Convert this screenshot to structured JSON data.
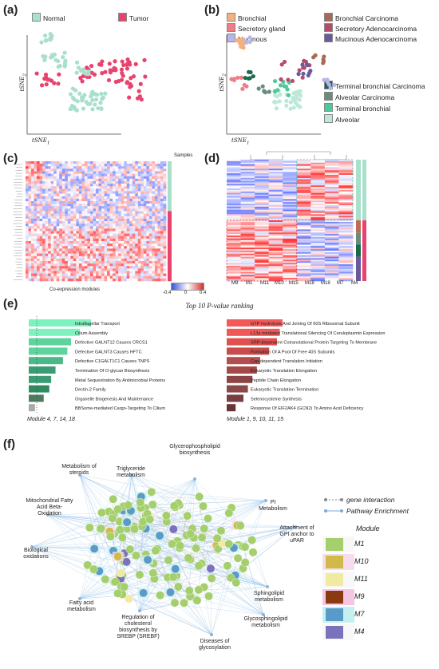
{
  "panels": {
    "a": "(a)",
    "b": "(b)",
    "c": "(c)",
    "d": "(d)",
    "e": "(e)",
    "f": "(f)"
  },
  "panel_a": {
    "legend": [
      {
        "label": "Normal",
        "color": "#a8e0cc"
      },
      {
        "label": "Tumor",
        "color": "#e8436e"
      }
    ],
    "xlabel": "tSNE",
    "xsub": "1",
    "ylabel": "tSNE",
    "ysub": "2"
  },
  "panel_b": {
    "legend_top": [
      {
        "label": "Bronchial",
        "color": "#f2b27e"
      },
      {
        "label": "Secretory gland",
        "color": "#f07c88"
      },
      {
        "label": "Mucinous",
        "color": "#b8b6e8"
      }
    ],
    "legend_top_right": [
      {
        "label": "Bronchial Carcinoma",
        "color": "#a86a55"
      },
      {
        "label": "Secretory  Adenocarcinoma",
        "color": "#b84a6a"
      },
      {
        "label": "Mucinous  Adenocarcinoma",
        "color": "#6a5a9c"
      }
    ],
    "legend_right": [
      {
        "label": "Terminal bronchial Carcinoma",
        "color": "#1c6a4e"
      },
      {
        "label": "Alveolar Carcinoma",
        "color": "#6a8c7e"
      },
      {
        "label": "Terminal bronchial",
        "color": "#4ec99a"
      },
      {
        "label": "Alveolar",
        "color": "#bde8d8"
      }
    ],
    "xlabel": "tSNE",
    "xsub": "1",
    "ylabel": "tSNE",
    "ysub": "2"
  },
  "panel_c": {
    "samples_label": "Samples",
    "modules_label": "Co-expression modules",
    "colorbar": {
      "min": "-0.4",
      "mid": "0",
      "max": "0.4"
    }
  },
  "panel_d": {
    "columns": [
      "M9",
      "M1",
      "M11",
      "M10",
      "M15",
      "M18",
      "M18",
      "M7",
      "M4"
    ]
  },
  "panel_e": {
    "title": "Top 10 P-value ranking",
    "left": {
      "module_label": "Module 4, 7, 14, 18",
      "bars": [
        {
          "label": "Intraflagellar Transport",
          "value": 1.0,
          "color": "#7ef2be"
        },
        {
          "label": "Cilium Assembly",
          "value": 0.82,
          "color": "#7ef2be"
        },
        {
          "label": "Defective GALNT12 Causes CRCS1",
          "value": 0.68,
          "color": "#5dd49e"
        },
        {
          "label": "Defective GALNT3 Causes HFTC",
          "value": 0.62,
          "color": "#5dd49e"
        },
        {
          "label": "Defective C1GALT1C1 Causes TNPS",
          "value": 0.55,
          "color": "#4bb887"
        },
        {
          "label": "Termination Of O-glycan Biosynthesis",
          "value": 0.43,
          "color": "#3a9c72"
        },
        {
          "label": "Metal Sequestration By Antimicrobial Proteins",
          "value": 0.36,
          "color": "#3a9c72"
        },
        {
          "label": "Dectin-2 Family",
          "value": 0.33,
          "color": "#2f8a60"
        },
        {
          "label": "Organelle Biogenesis And Maintenance",
          "value": 0.24,
          "color": "#4e7a60"
        },
        {
          "label": "BBSome-mediated Cargo-Targeting To Cilium",
          "value": 0.1,
          "color": "#aaaaaa"
        }
      ]
    },
    "right": {
      "module_label": "Module 1, 9, 10, 11, 15",
      "bars": [
        {
          "label": "GTP Hydrolysis And Joining Of 60S Ribosomal Subunit",
          "value": 1.0,
          "color": "#f25a5a"
        },
        {
          "label": "L13a mediated Translational Silencing Of Ceruloplasmin Expression",
          "value": 0.95,
          "color": "#ee5858"
        },
        {
          "label": "SRP-dependent Cotranslational Protein Targeting To Membrane",
          "value": 0.9,
          "color": "#e05050"
        },
        {
          "label": "Formation Of A Pool Of Free 40S Subunits",
          "value": 0.76,
          "color": "#c84c4c"
        },
        {
          "label": "Cap-dependent Translation Initiation",
          "value": 0.6,
          "color": "#b44e4e"
        },
        {
          "label": "Eukaryotic Translation Elongation",
          "value": 0.54,
          "color": "#a44848"
        },
        {
          "label": "Peptide Chain Elongation",
          "value": 0.46,
          "color": "#8e4444"
        },
        {
          "label": "Eukaryotic Translation Termination",
          "value": 0.38,
          "color": "#8a4848"
        },
        {
          "label": "Selenocysteine Synthesis",
          "value": 0.3,
          "color": "#7a3e3e"
        },
        {
          "label": "Response Of EIF2AK4 (GCN2) To Amino Acid Deficiency",
          "value": 0.16,
          "color": "#6a3434"
        }
      ]
    }
  },
  "panel_f": {
    "pathways": {
      "glycerophospholipid": "Glycerophospholipid biosynthesis",
      "triglyceride": "Triglyceride metabolism",
      "steroids": "Metabolism of steroids",
      "mito": "Mitochondrial Fatty Acid Beta-Oxidation",
      "pi": "PI Metabolism",
      "biological": "Biological oxidations",
      "gpi": "Attachment of GPI anchor to uPAR",
      "fatty": "Fatty acid metabolism",
      "cholesterol": "Regulation of cholesterol biosynthesis by SREBP (SREBF)",
      "sphingolipid": "Sphingolipid metabolism",
      "glycosphingo": "Glycosphingolipid metabolism",
      "glycosylation": "Diseases of glycosylation"
    },
    "legend": {
      "gene_interaction": "gene interaction",
      "pathway_enrichment": "Pathway Enrichment",
      "module_title": "Module",
      "modules": [
        {
          "label": "M1",
          "color": "#a4cf6c",
          "glow": "#f8f8f8"
        },
        {
          "label": "M10",
          "color": "#d0bb4a",
          "glow": "#f7dcef"
        },
        {
          "label": "M11",
          "color": "#f2eaa0",
          "glow": "#f8f8f8"
        },
        {
          "label": "M9",
          "color": "#8a3a10",
          "glow": "#f4c6e4"
        },
        {
          "label": "M7",
          "color": "#5a9ac8",
          "glow": "#c6f0f0"
        },
        {
          "label": "M4",
          "color": "#7a72bc",
          "glow": "#f8f8f8"
        }
      ]
    }
  }
}
